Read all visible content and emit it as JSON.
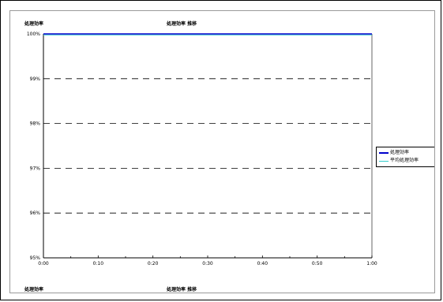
{
  "page": {
    "top_chart_ylabel": "処理効率",
    "top_chart_title": "処理効率 推移",
    "bottom_chart_ylabel": "処理効率",
    "bottom_chart_title": "処理効率 推移"
  },
  "colors": {
    "series1": "#0000cc",
    "series2": "#33cccc",
    "grid": "#000000"
  },
  "chart_data": {
    "type": "line",
    "title": "処理効率 推移",
    "ylabel": "処理効率",
    "xlabel": "",
    "x": [
      "0:00",
      "0:10",
      "0:20",
      "0:30",
      "0:40",
      "0:50",
      "1:00"
    ],
    "x_minor_ticks_per_interval": 2,
    "ylim": [
      95,
      100
    ],
    "yticks": [
      95,
      96,
      97,
      98,
      99,
      100
    ],
    "ytick_labels": [
      "95%",
      "96%",
      "97%",
      "98%",
      "99%",
      "100%"
    ],
    "grid": "horizontal dashed",
    "legend_position": "right",
    "series": [
      {
        "name": "処理効率",
        "values": [
          100,
          100,
          100,
          100,
          100,
          100,
          100
        ],
        "color": "#0000cc"
      },
      {
        "name": "平均処理効率",
        "values": [
          100,
          100,
          100,
          100,
          100,
          100,
          100
        ],
        "color": "#33cccc"
      }
    ]
  }
}
